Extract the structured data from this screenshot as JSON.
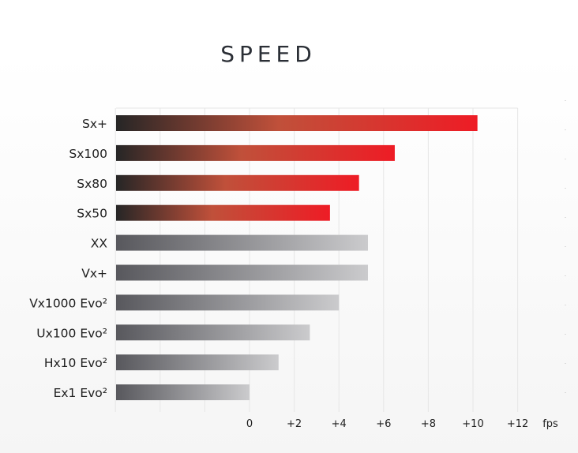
{
  "chart_data": {
    "type": "bar",
    "orientation": "horizontal",
    "title": "SPEED",
    "unit_label": "fps",
    "categories": [
      "Sx+",
      "Sx100",
      "Sx80",
      "Sx50",
      "XX",
      "Vx+",
      "Vx1000 Evo²",
      "Ux100 Evo²",
      "Hx10 Evo²",
      "Ex1 Evo²"
    ],
    "values": [
      10.2,
      6.5,
      4.9,
      3.6,
      5.3,
      5.3,
      4.0,
      2.7,
      1.3,
      0
    ],
    "bar_styles": [
      "red",
      "red",
      "red",
      "red",
      "gray",
      "gray",
      "gray",
      "gray",
      "gray",
      "gray"
    ],
    "xlim": [
      -6,
      12
    ],
    "xticks": [
      0,
      2,
      4,
      6,
      8,
      10,
      12
    ],
    "xtick_labels": [
      "0",
      "+2",
      "+4",
      "+6",
      "+8",
      "+10",
      "+12"
    ],
    "grid": true
  },
  "colors": {
    "red_start": "#262626",
    "red_mid": "#c0503a",
    "red_end": "#ee1c25",
    "gray_start": "#58585d",
    "gray_end": "#cbcbcd",
    "grid": "#e6e6e6",
    "title": "#2b2f36"
  }
}
